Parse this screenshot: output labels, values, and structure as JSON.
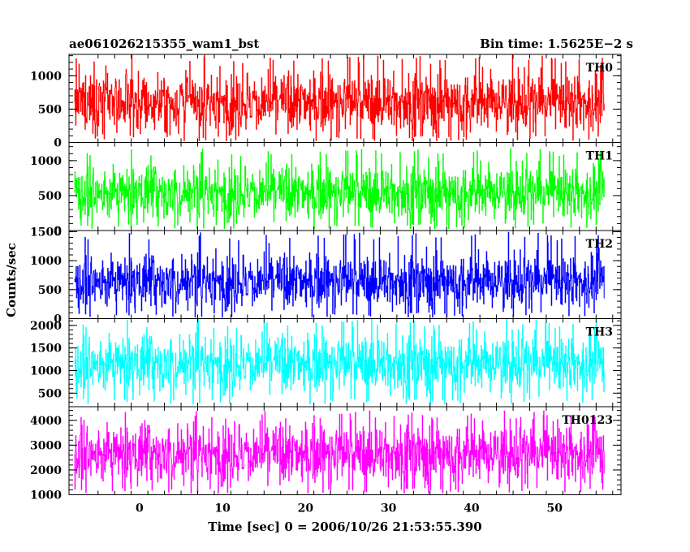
{
  "chart_data": {
    "type": "line",
    "title_left": "ae061026215355_wam1_bst",
    "title_right": "Bin time: 1.5625E−2 s",
    "xlabel": "Time [sec] 0 = 2006/10/26 21:53:55.390",
    "ylabel": "Counts/sec",
    "xlim": [
      -8.5,
      58
    ],
    "x_ticks": [
      0,
      10,
      20,
      30,
      40,
      50
    ],
    "x_range_data": [
      -7.8,
      56.0
    ],
    "bin_time_s": 0.015625,
    "panels": [
      {
        "name": "TH0",
        "color": "#ff0000",
        "ylim": [
          0,
          1320
        ],
        "y_ticks": [
          0,
          500,
          1000
        ],
        "y_tick_labels": [
          "0",
          "500",
          "1000"
        ],
        "mean": 600,
        "spread": 230,
        "min": 20,
        "max": 1320
      },
      {
        "name": "TH1",
        "color": "#00ff00",
        "ylim": [
          0,
          1260
        ],
        "y_ticks": [
          0,
          500,
          1000
        ],
        "y_tick_labels": [
          "0",
          "500",
          "1000"
        ],
        "mean": 540,
        "spread": 200,
        "min": 20,
        "max": 1180
      },
      {
        "name": "TH2",
        "color": "#0000ff",
        "ylim": [
          0,
          1520
        ],
        "y_ticks": [
          0,
          500,
          1000,
          1500
        ],
        "y_tick_labels": [
          "0",
          "500",
          "1000",
          "1500"
        ],
        "mean": 640,
        "spread": 240,
        "min": 20,
        "max": 1500
      },
      {
        "name": "TH3",
        "color": "#00ffff",
        "ylim": [
          200,
          2150
        ],
        "y_ticks": [
          500,
          1000,
          1500,
          2000
        ],
        "y_tick_labels": [
          "500",
          "1000",
          "1500",
          "2000"
        ],
        "mean": 1150,
        "spread": 330,
        "min": 250,
        "max": 2150
      },
      {
        "name": "TH0123",
        "color": "#ff00ff",
        "ylim": [
          1000,
          4550
        ],
        "y_ticks": [
          1000,
          2000,
          3000,
          4000
        ],
        "y_tick_labels": [
          "1000",
          "2000",
          "3000",
          "4000"
        ],
        "mean": 2650,
        "spread": 620,
        "min": 1050,
        "max": 4400
      }
    ]
  }
}
